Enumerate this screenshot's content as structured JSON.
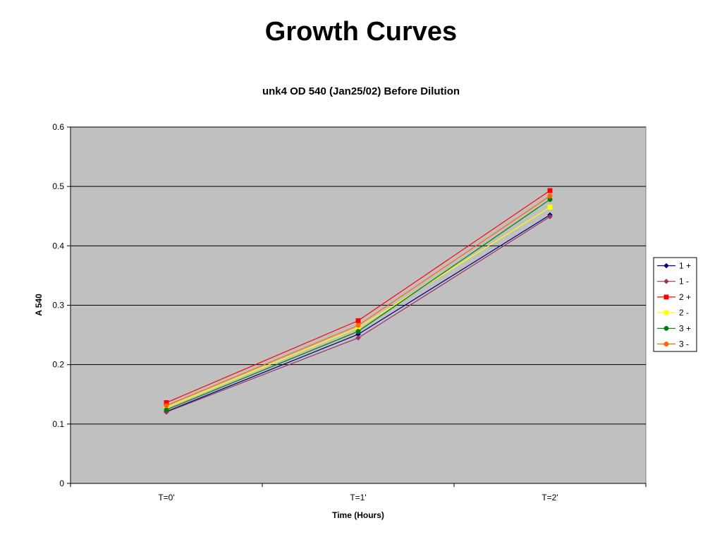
{
  "slide": {
    "title": "Growth Curves"
  },
  "colors": {
    "plot_background": "#c0c0c0",
    "gridline": "#000000"
  },
  "chart_data": {
    "type": "line",
    "title": "unk4 OD 540 (Jan25/02) Before Dilution",
    "xlabel": "Time (Hours)",
    "ylabel": "A 540",
    "categories": [
      "T=0'",
      "T=1'",
      "T=2'"
    ],
    "ylim": [
      0,
      0.6
    ],
    "yticks": [
      "0",
      "0.1",
      "0.2",
      "0.3",
      "0.4",
      "0.5",
      "0.6"
    ],
    "grid": "horizontal",
    "legend_position": "right",
    "series": [
      {
        "name": "1 +",
        "values": [
          0.121,
          0.251,
          0.452
        ],
        "color": "#000080",
        "marker": "diamond"
      },
      {
        "name": "1 -",
        "values": [
          0.12,
          0.245,
          0.449
        ],
        "color": "#993366",
        "marker": "diamond"
      },
      {
        "name": "2 +",
        "values": [
          0.136,
          0.274,
          0.493
        ],
        "color": "#ff0000",
        "marker": "square"
      },
      {
        "name": "2 -",
        "values": [
          0.128,
          0.262,
          0.465
        ],
        "color": "#ffff00",
        "marker": "square"
      },
      {
        "name": "3 +",
        "values": [
          0.124,
          0.256,
          0.478
        ],
        "color": "#008000",
        "marker": "circle"
      },
      {
        "name": "3 -",
        "values": [
          0.131,
          0.266,
          0.484
        ],
        "color": "#ff6600",
        "marker": "circle"
      }
    ]
  }
}
